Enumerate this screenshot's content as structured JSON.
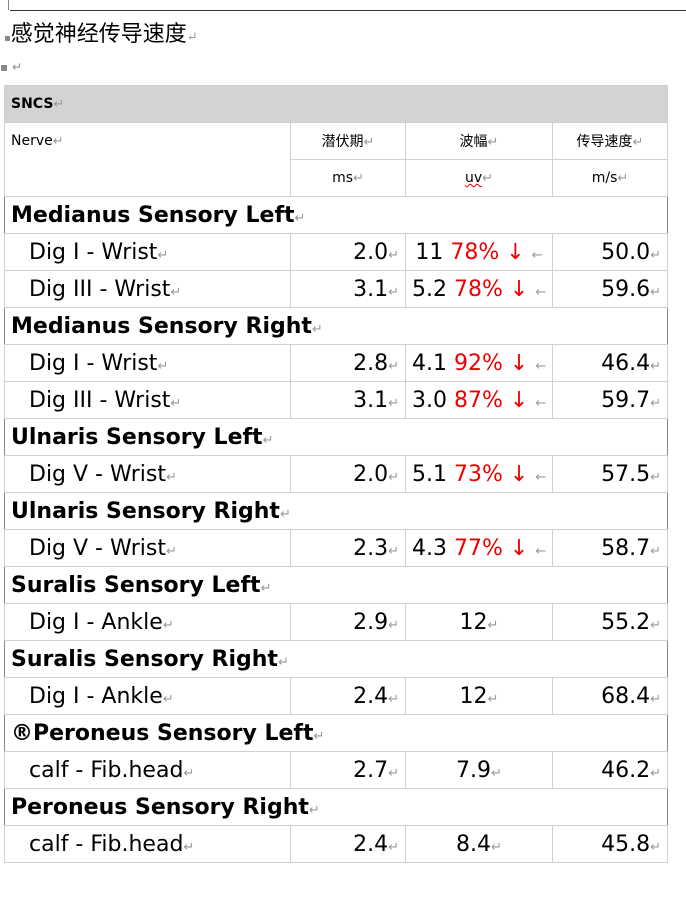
{
  "document": {
    "title": "感觉神经传导速度"
  },
  "table": {
    "caption": "SNCS",
    "headers": {
      "nerve": "Nerve",
      "latency": "潜伏期",
      "amplitude": "波幅",
      "velocity": "传导速度"
    },
    "units": {
      "latency": "ms",
      "amplitude": "uv",
      "velocity": "m/s"
    },
    "highlight_color": "#e00000",
    "sections": [
      {
        "name": "Medianus Sensory Left",
        "rows": [
          {
            "segment": "Dig I - Wrist",
            "latency": "2.0",
            "amplitude": "11",
            "percent": "78%",
            "arrow": "↓",
            "velocity": "50.0"
          },
          {
            "segment": "Dig III - Wrist",
            "latency": "3.1",
            "amplitude": "5.2",
            "percent": "78%",
            "arrow": "↓",
            "velocity": "59.6"
          }
        ]
      },
      {
        "name": "Medianus Sensory Right",
        "rows": [
          {
            "segment": "Dig I - Wrist",
            "latency": "2.8",
            "amplitude": "4.1",
            "percent": "92%",
            "arrow": "↓",
            "velocity": "46.4"
          },
          {
            "segment": "Dig III - Wrist",
            "latency": "3.1",
            "amplitude": "3.0",
            "percent": "87%",
            "arrow": "↓",
            "velocity": "59.7"
          }
        ]
      },
      {
        "name": "Ulnaris Sensory Left",
        "rows": [
          {
            "segment": "Dig V - Wrist",
            "latency": "2.0",
            "amplitude": "5.1",
            "percent": "73%",
            "arrow": "↓",
            "velocity": "57.5"
          }
        ]
      },
      {
        "name": "Ulnaris Sensory Right",
        "rows": [
          {
            "segment": "Dig V - Wrist",
            "latency": "2.3",
            "amplitude": "4.3",
            "percent": "77%",
            "arrow": "↓",
            "velocity": "58.7"
          }
        ]
      },
      {
        "name": "Suralis Sensory Left",
        "rows": [
          {
            "segment": "Dig I - Ankle",
            "latency": "2.9",
            "amplitude": "12",
            "velocity": "55.2"
          }
        ]
      },
      {
        "name": "Suralis Sensory Right",
        "rows": [
          {
            "segment": "Dig I - Ankle",
            "latency": "2.4",
            "amplitude": "12",
            "velocity": "68.4"
          }
        ]
      },
      {
        "name": "®Peroneus Sensory Left",
        "rows": [
          {
            "segment": "calf - Fib.head",
            "latency": "2.7",
            "amplitude": "7.9",
            "velocity": "46.2"
          }
        ]
      },
      {
        "name": "Peroneus Sensory Right",
        "rows": [
          {
            "segment": "calf - Fib.head",
            "latency": "2.4",
            "amplitude": "8.4",
            "velocity": "45.8"
          }
        ]
      }
    ]
  }
}
